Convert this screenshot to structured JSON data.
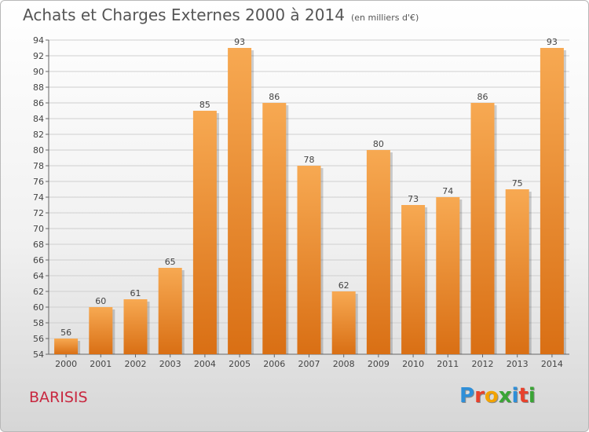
{
  "title": "Achats et Charges Externes 2000 à 2014",
  "subtitle": "(en milliers d'€)",
  "place": "BARISIS",
  "logo": {
    "letters": [
      "P",
      "r",
      "o",
      "x",
      "i",
      "t",
      "i"
    ],
    "colors": [
      "#2f8fd8",
      "#e8412c",
      "#f2a300",
      "#3aa535",
      "#2f8fd8",
      "#e8412c",
      "#3aa535"
    ]
  },
  "colors": {
    "bar_top": "#f7a952",
    "bar_bottom": "#d96f14",
    "grid": "#cfcfcf"
  },
  "chart_data": {
    "type": "bar",
    "categories": [
      "2000",
      "2001",
      "2002",
      "2003",
      "2004",
      "2005",
      "2006",
      "2007",
      "2008",
      "2009",
      "2010",
      "2011",
      "2012",
      "2013",
      "2014"
    ],
    "values": [
      56,
      60,
      61,
      65,
      85,
      93,
      86,
      78,
      62,
      80,
      73,
      74,
      86,
      75,
      93
    ],
    "ylim": [
      54,
      94
    ],
    "yticks": [
      54,
      56,
      58,
      60,
      62,
      64,
      66,
      68,
      70,
      72,
      74,
      76,
      78,
      80,
      82,
      84,
      86,
      88,
      90,
      92,
      94
    ],
    "grid": true,
    "legend": "none"
  }
}
